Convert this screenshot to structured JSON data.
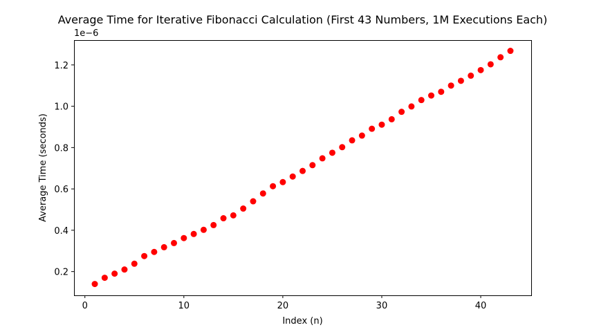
{
  "chart_data": {
    "type": "scatter",
    "title": "Average Time for Iterative Fibonacci Calculation (First 43 Numbers, 1M Executions Each)",
    "xlabel": "Index (n)",
    "ylabel": "Average Time (seconds)",
    "y_offset_label": "1e−6",
    "xlim": [
      -1.1,
      45.1
    ],
    "ylim": [
      0.085,
      1.32
    ],
    "xticks": [
      0,
      10,
      20,
      30,
      40
    ],
    "xtick_labels": [
      "0",
      "10",
      "20",
      "30",
      "40"
    ],
    "yticks": [
      0.2,
      0.4,
      0.6,
      0.8,
      1.0,
      1.2
    ],
    "ytick_labels": [
      "0.2",
      "0.4",
      "0.6",
      "0.8",
      "1.0",
      "1.2"
    ],
    "grid": false,
    "marker_color": "#ff0000",
    "series": [
      {
        "x": [
          1,
          2,
          3,
          4,
          5,
          6,
          7,
          8,
          9,
          10,
          11,
          12,
          13,
          14,
          15,
          16,
          17,
          18,
          19,
          20,
          21,
          22,
          23,
          24,
          25,
          26,
          27,
          28,
          29,
          30,
          31,
          32,
          33,
          34,
          35,
          36,
          37,
          38,
          39,
          40,
          41,
          42,
          43
        ],
        "values": [
          0.14,
          0.17,
          0.19,
          0.21,
          0.238,
          0.275,
          0.295,
          0.318,
          0.338,
          0.362,
          0.382,
          0.402,
          0.425,
          0.458,
          0.472,
          0.505,
          0.54,
          0.578,
          0.613,
          0.633,
          0.66,
          0.687,
          0.715,
          0.748,
          0.775,
          0.802,
          0.835,
          0.858,
          0.891,
          0.911,
          0.937,
          0.973,
          0.999,
          1.03,
          1.052,
          1.07,
          1.1,
          1.123,
          1.148,
          1.175,
          1.203,
          1.237,
          1.268
        ]
      }
    ]
  }
}
